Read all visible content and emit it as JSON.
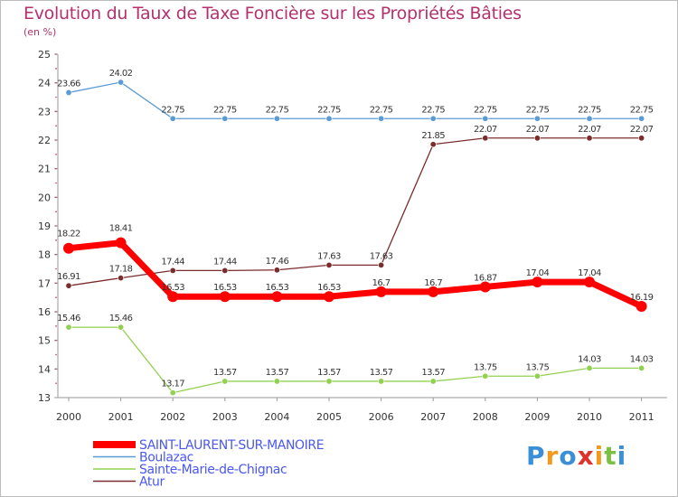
{
  "title": "Evolution du Taux de Taxe Foncière sur les Propriétés Bâties",
  "unit": "(en %)",
  "brand": "Proxiti",
  "chart_data": {
    "type": "line",
    "title": "Evolution du Taux de Taxe Foncière sur les Propriétés Bâties",
    "ylabel": "(en %)",
    "xlabel": "",
    "x": [
      "2000",
      "2001",
      "2002",
      "2003",
      "2004",
      "2005",
      "2006",
      "2007",
      "2008",
      "2009",
      "2010",
      "2011"
    ],
    "ylim": [
      13,
      25
    ],
    "yticks": [
      "13",
      "14",
      "15",
      "16",
      "17",
      "18",
      "19",
      "20",
      "21",
      "22",
      "23",
      "24",
      "25"
    ],
    "legend_position": "bottom-left",
    "series": [
      {
        "name": "SAINT-LAURENT-SUR-MANOIRE",
        "color": "#ff0000",
        "values": [
          18.22,
          18.41,
          16.53,
          16.53,
          16.53,
          16.53,
          16.7,
          16.7,
          16.87,
          17.04,
          17.04,
          16.19
        ],
        "labels": [
          "18.22",
          "18.41",
          "16.53",
          "16.53",
          "16.53",
          "16.53",
          "16.7",
          "16.7",
          "16.87",
          "17.04",
          "17.04",
          "16.19"
        ]
      },
      {
        "name": "Boulazac",
        "color": "#5b9bd5",
        "values": [
          23.66,
          24.02,
          22.75,
          22.75,
          22.75,
          22.75,
          22.75,
          22.75,
          22.75,
          22.75,
          22.75,
          22.75
        ],
        "labels": [
          "23.66",
          "24.02",
          "22.75",
          "22.75",
          "22.75",
          "22.75",
          "22.75",
          "22.75",
          "22.75",
          "22.75",
          "22.75",
          "22.75"
        ]
      },
      {
        "name": "Sainte-Marie-de-Chignac",
        "color": "#92d050",
        "values": [
          15.46,
          15.46,
          13.17,
          13.57,
          13.57,
          13.57,
          13.57,
          13.57,
          13.75,
          13.75,
          14.03,
          14.03
        ],
        "labels": [
          "15.46",
          "15.46",
          "13.17",
          "13.57",
          "13.57",
          "13.57",
          "13.57",
          "13.57",
          "13.75",
          "13.75",
          "14.03",
          "14.03"
        ]
      },
      {
        "name": "Atur",
        "color": "#7b2c2c",
        "values": [
          16.91,
          17.18,
          17.44,
          17.44,
          17.46,
          17.63,
          17.63,
          21.85,
          22.07,
          22.07,
          22.07,
          22.07
        ],
        "labels": [
          "16.91",
          "17.18",
          "17.44",
          "17.44",
          "17.46",
          "17.63",
          "17.63",
          "21.85",
          "22.07",
          "22.07",
          "22.07",
          "22.07"
        ]
      }
    ]
  }
}
